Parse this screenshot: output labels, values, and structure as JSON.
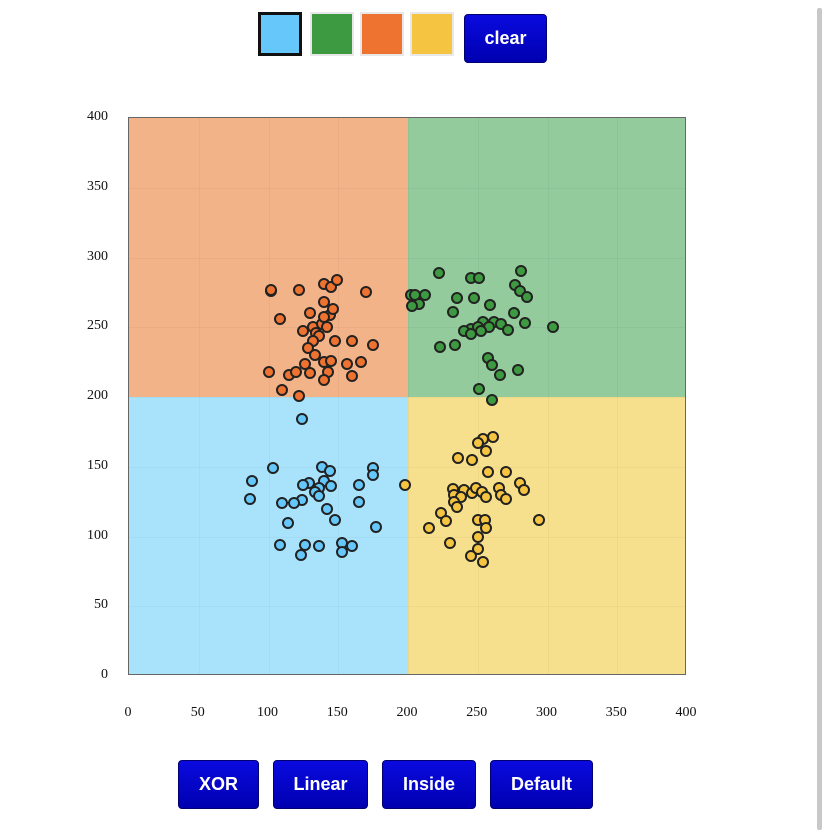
{
  "palette": {
    "colors": [
      {
        "name": "blue",
        "hex": "#66c8fa"
      },
      {
        "name": "green",
        "hex": "#3e9a40"
      },
      {
        "name": "orange",
        "hex": "#ee7330"
      },
      {
        "name": "yellow",
        "hex": "#f5c440"
      }
    ],
    "selected": "blue"
  },
  "clear_label": "clear",
  "modes": {
    "xor_label": "XOR",
    "linear_label": "Linear",
    "inside_label": "Inside",
    "default_label": "Default"
  },
  "regions": [
    {
      "color": "orange",
      "fill": "#f2b388",
      "x": [
        0,
        200
      ],
      "y": [
        200,
        400
      ]
    },
    {
      "color": "green",
      "fill": "#93cb9c",
      "x": [
        200,
        400
      ],
      "y": [
        200,
        400
      ]
    },
    {
      "color": "blue",
      "fill": "#a9e3fb",
      "x": [
        0,
        200
      ],
      "y": [
        0,
        200
      ]
    },
    {
      "color": "yellow",
      "fill": "#f7e08d",
      "x": [
        200,
        400
      ],
      "y": [
        0,
        200
      ]
    }
  ],
  "chart_data": {
    "type": "scatter",
    "xlim": [
      0,
      400
    ],
    "ylim": [
      0,
      400
    ],
    "xticks": [
      "0",
      "50",
      "100",
      "150",
      "200",
      "250",
      "300",
      "350",
      "400"
    ],
    "yticks": [
      "0",
      "50",
      "100",
      "150",
      "200",
      "250",
      "300",
      "350",
      "400"
    ],
    "series": [
      {
        "color": "orange",
        "hex": "#ee7330",
        "points": [
          [
            102,
            276
          ],
          [
            102,
            277
          ],
          [
            122,
            277
          ],
          [
            140,
            281
          ],
          [
            145,
            279
          ],
          [
            149,
            284
          ],
          [
            170,
            275
          ],
          [
            108,
            256
          ],
          [
            140,
            268
          ],
          [
            144,
            259
          ],
          [
            146,
            263
          ],
          [
            130,
            260
          ],
          [
            125,
            247
          ],
          [
            132,
            250
          ],
          [
            138,
            252
          ],
          [
            134,
            246
          ],
          [
            142,
            250
          ],
          [
            140,
            257
          ],
          [
            136,
            244
          ],
          [
            132,
            240
          ],
          [
            128,
            235
          ],
          [
            148,
            240
          ],
          [
            160,
            240
          ],
          [
            175,
            237
          ],
          [
            133,
            230
          ],
          [
            126,
            224
          ],
          [
            140,
            225
          ],
          [
            145,
            226
          ],
          [
            156,
            224
          ],
          [
            166,
            225
          ],
          [
            100,
            218
          ],
          [
            115,
            216
          ],
          [
            120,
            218
          ],
          [
            130,
            217
          ],
          [
            143,
            218
          ],
          [
            160,
            215
          ],
          [
            140,
            212
          ],
          [
            110,
            205
          ],
          [
            122,
            201
          ]
        ]
      },
      {
        "color": "green",
        "hex": "#3e9a40",
        "points": [
          [
            222,
            289
          ],
          [
            245,
            285
          ],
          [
            251,
            285
          ],
          [
            281,
            290
          ],
          [
            277,
            280
          ],
          [
            280,
            276
          ],
          [
            285,
            272
          ],
          [
            202,
            273
          ],
          [
            205,
            273
          ],
          [
            212,
            273
          ],
          [
            208,
            267
          ],
          [
            203,
            265
          ],
          [
            235,
            271
          ],
          [
            247,
            271
          ],
          [
            232,
            261
          ],
          [
            259,
            266
          ],
          [
            276,
            260
          ],
          [
            284,
            253
          ],
          [
            254,
            254
          ],
          [
            262,
            254
          ],
          [
            267,
            252
          ],
          [
            245,
            249
          ],
          [
            250,
            250
          ],
          [
            258,
            250
          ],
          [
            240,
            247
          ],
          [
            245,
            245
          ],
          [
            252,
            247
          ],
          [
            272,
            248
          ],
          [
            304,
            250
          ],
          [
            223,
            236
          ],
          [
            234,
            237
          ],
          [
            257,
            228
          ],
          [
            260,
            223
          ],
          [
            266,
            216
          ],
          [
            279,
            219
          ],
          [
            251,
            206
          ],
          [
            260,
            198
          ]
        ]
      },
      {
        "color": "blue",
        "hex": "#66c8fa",
        "points": [
          [
            124,
            184
          ],
          [
            103,
            149
          ],
          [
            138,
            150
          ],
          [
            144,
            147
          ],
          [
            175,
            149
          ],
          [
            175,
            144
          ],
          [
            88,
            140
          ],
          [
            129,
            138
          ],
          [
            140,
            140
          ],
          [
            125,
            137
          ],
          [
            136,
            135
          ],
          [
            145,
            136
          ],
          [
            133,
            132
          ],
          [
            136,
            129
          ],
          [
            165,
            137
          ],
          [
            87,
            127
          ],
          [
            124,
            126
          ],
          [
            110,
            124
          ],
          [
            118,
            124
          ],
          [
            142,
            120
          ],
          [
            165,
            125
          ],
          [
            148,
            112
          ],
          [
            114,
            110
          ],
          [
            177,
            107
          ],
          [
            108,
            94
          ],
          [
            126,
            94
          ],
          [
            136,
            93
          ],
          [
            153,
            95
          ],
          [
            160,
            93
          ],
          [
            123,
            87
          ],
          [
            153,
            89
          ]
        ]
      },
      {
        "color": "yellow",
        "hex": "#f5c440",
        "points": [
          [
            198,
            137
          ],
          [
            261,
            171
          ],
          [
            254,
            170
          ],
          [
            250,
            167
          ],
          [
            256,
            161
          ],
          [
            236,
            156
          ],
          [
            246,
            155
          ],
          [
            257,
            146
          ],
          [
            270,
            146
          ],
          [
            280,
            138
          ],
          [
            232,
            134
          ],
          [
            240,
            133
          ],
          [
            246,
            131
          ],
          [
            249,
            135
          ],
          [
            253,
            132
          ],
          [
            265,
            135
          ],
          [
            267,
            130
          ],
          [
            283,
            133
          ],
          [
            233,
            130
          ],
          [
            238,
            128
          ],
          [
            256,
            128
          ],
          [
            270,
            127
          ],
          [
            233,
            125
          ],
          [
            235,
            121
          ],
          [
            224,
            117
          ],
          [
            227,
            111
          ],
          [
            250,
            112
          ],
          [
            255,
            112
          ],
          [
            294,
            112
          ],
          [
            256,
            106
          ],
          [
            215,
            106
          ],
          [
            250,
            100
          ],
          [
            230,
            95
          ],
          [
            250,
            91
          ],
          [
            245,
            86
          ],
          [
            254,
            82
          ]
        ]
      }
    ]
  }
}
